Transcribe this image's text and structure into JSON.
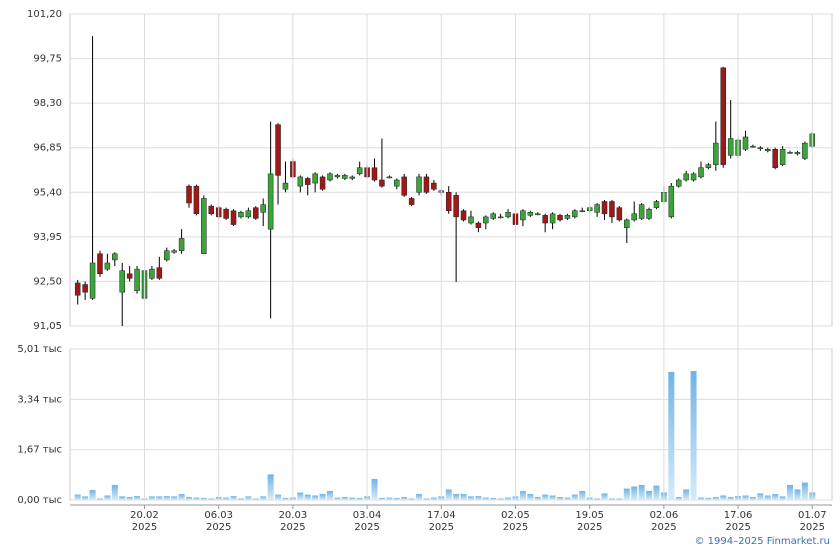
{
  "chart_data": [
    {
      "type": "candlestick",
      "color_up": "#3aa53a",
      "color_down": "#a01818",
      "ylim": [
        91.05,
        101.2
      ],
      "yticks": [
        {
          "value": 91.05,
          "label": "91,05"
        },
        {
          "value": 92.5,
          "label": "92,50"
        },
        {
          "value": 93.95,
          "label": "93,95"
        },
        {
          "value": 95.4,
          "label": "95,40"
        },
        {
          "value": 96.85,
          "label": "96,85"
        },
        {
          "value": 98.3,
          "label": "98,30"
        },
        {
          "value": 99.75,
          "label": "99,75"
        },
        {
          "value": 101.2,
          "label": "101,20"
        }
      ],
      "grid": true,
      "open": [
        92.45,
        92.4,
        91.95,
        93.4,
        92.9,
        93.2,
        92.15,
        92.75,
        92.2,
        91.95,
        92.6,
        92.95,
        93.2,
        93.45,
        93.5,
        95.6,
        95.6,
        93.4,
        94.95,
        94.9,
        94.85,
        94.8,
        94.6,
        94.6,
        94.9,
        94.75,
        94.2,
        97.6,
        95.5,
        96.4,
        95.6,
        95.85,
        95.7,
        95.9,
        95.8,
        95.9,
        95.85,
        95.85,
        96.0,
        96.2,
        96.2,
        95.8,
        95.9,
        95.6,
        95.9,
        95.2,
        95.4,
        95.9,
        95.7,
        95.4,
        95.4,
        95.3,
        94.8,
        94.4,
        94.4,
        94.4,
        94.55,
        94.6,
        94.6,
        94.7,
        94.5,
        94.65,
        94.7,
        94.65,
        94.4,
        94.65,
        94.55,
        94.6,
        94.8,
        94.8,
        94.75,
        95.1,
        95.1,
        94.9,
        94.25,
        94.5,
        94.55,
        94.55,
        94.9,
        95.1,
        94.6,
        95.6,
        95.8,
        95.8,
        95.9,
        96.2,
        96.3,
        99.45,
        96.6,
        96.6,
        96.8,
        96.9,
        96.85,
        96.75,
        96.8,
        96.3,
        96.7,
        96.65,
        96.5,
        96.9
      ],
      "high": [
        92.55,
        92.5,
        100.48,
        93.5,
        93.4,
        93.45,
        93.1,
        93.0,
        93.0,
        92.9,
        93.0,
        93.3,
        93.6,
        93.55,
        94.2,
        95.65,
        95.65,
        95.3,
        95.0,
        94.95,
        94.9,
        94.85,
        94.8,
        94.9,
        94.95,
        95.2,
        97.7,
        97.65,
        96.4,
        96.5,
        95.95,
        95.9,
        96.05,
        95.95,
        96.05,
        96.0,
        96.0,
        95.95,
        96.4,
        96.3,
        96.5,
        97.15,
        95.95,
        95.85,
        96.0,
        95.25,
        96.0,
        96.0,
        95.8,
        95.5,
        95.6,
        95.4,
        94.85,
        94.8,
        94.45,
        94.65,
        94.75,
        94.7,
        94.85,
        94.75,
        94.85,
        94.8,
        94.75,
        94.7,
        94.75,
        94.7,
        94.7,
        94.85,
        94.9,
        94.95,
        95.05,
        95.15,
        95.15,
        94.95,
        94.55,
        95.1,
        95.05,
        94.9,
        95.15,
        95.6,
        95.7,
        95.85,
        96.1,
        96.05,
        96.4,
        96.35,
        97.7,
        99.48,
        98.4,
        97.2,
        97.4,
        96.95,
        96.9,
        96.85,
        96.85,
        96.9,
        96.75,
        96.75,
        97.05,
        97.35
      ],
      "low": [
        91.75,
        91.9,
        91.9,
        92.65,
        92.85,
        93.0,
        91.05,
        92.5,
        92.1,
        91.9,
        92.55,
        92.55,
        93.15,
        93.4,
        93.4,
        94.9,
        94.65,
        93.4,
        94.65,
        94.55,
        94.5,
        94.3,
        94.55,
        94.55,
        94.5,
        94.3,
        91.3,
        95.0,
        95.4,
        95.85,
        95.4,
        95.3,
        95.4,
        95.45,
        95.75,
        95.85,
        95.8,
        95.8,
        95.95,
        95.85,
        95.75,
        95.55,
        95.85,
        95.5,
        95.25,
        94.95,
        95.3,
        95.35,
        95.45,
        95.3,
        94.7,
        92.48,
        94.45,
        94.35,
        94.1,
        94.2,
        94.5,
        94.55,
        94.55,
        94.2,
        94.3,
        94.6,
        94.65,
        94.1,
        94.2,
        94.45,
        94.5,
        94.55,
        94.75,
        94.75,
        94.6,
        94.5,
        94.4,
        94.45,
        93.75,
        94.45,
        94.5,
        94.5,
        94.85,
        95.05,
        94.55,
        95.55,
        95.75,
        95.75,
        95.85,
        96.15,
        96.1,
        96.2,
        96.5,
        96.5,
        96.75,
        96.85,
        96.75,
        96.7,
        96.15,
        96.25,
        96.65,
        96.6,
        96.45,
        96.85
      ],
      "close": [
        92.05,
        92.15,
        93.1,
        92.75,
        93.1,
        93.4,
        92.85,
        92.6,
        92.9,
        92.85,
        92.9,
        92.6,
        93.5,
        93.5,
        93.9,
        95.05,
        94.7,
        95.2,
        94.7,
        94.6,
        94.55,
        94.35,
        94.75,
        94.8,
        94.55,
        95.0,
        96.0,
        95.95,
        95.7,
        95.9,
        95.9,
        95.65,
        96.0,
        95.5,
        96.0,
        95.95,
        95.95,
        95.9,
        96.2,
        95.9,
        95.8,
        95.6,
        95.9,
        95.8,
        95.3,
        95.0,
        95.9,
        95.4,
        95.5,
        95.45,
        94.8,
        94.6,
        94.5,
        94.6,
        94.25,
        94.6,
        94.7,
        94.6,
        94.75,
        94.35,
        94.8,
        94.75,
        94.7,
        94.4,
        94.7,
        94.5,
        94.65,
        94.8,
        94.8,
        94.9,
        95.0,
        94.7,
        94.6,
        94.5,
        94.5,
        94.7,
        95.0,
        94.85,
        95.1,
        95.4,
        95.6,
        95.8,
        96.0,
        96.0,
        96.2,
        96.3,
        97.0,
        96.3,
        97.15,
        97.1,
        97.2,
        96.9,
        96.85,
        96.8,
        96.2,
        96.8,
        96.7,
        96.7,
        97.0,
        97.3
      ]
    },
    {
      "type": "bar",
      "color": "#7dbcea",
      "ylim": [
        0,
        5.01
      ],
      "yticks": [
        {
          "value": 0,
          "label": "0,00 тыс"
        },
        {
          "value": 1.67,
          "label": "1,67 тыс"
        },
        {
          "value": 3.34,
          "label": "3,34 тыс"
        },
        {
          "value": 5.01,
          "label": "5,01 тыс"
        }
      ],
      "grid": true,
      "categories": [
        null,
        null,
        null,
        null,
        null,
        null,
        null,
        null,
        null,
        "20.02\n2025",
        null,
        null,
        null,
        null,
        null,
        null,
        null,
        null,
        null,
        "06.03\n2025",
        null,
        null,
        null,
        null,
        null,
        null,
        null,
        null,
        null,
        "20.03\n2025",
        null,
        null,
        null,
        null,
        null,
        null,
        null,
        null,
        null,
        "03.04\n2025",
        null,
        null,
        null,
        null,
        null,
        null,
        null,
        null,
        null,
        "17.04\n2025",
        null,
        null,
        null,
        null,
        null,
        null,
        null,
        null,
        null,
        "02.05\n2025",
        null,
        null,
        null,
        null,
        null,
        null,
        null,
        null,
        null,
        "19.05\n2025",
        null,
        null,
        null,
        null,
        null,
        null,
        null,
        null,
        null,
        "02.06\n2025",
        null,
        null,
        null,
        null,
        null,
        null,
        null,
        null,
        null,
        "17.06\n2025",
        null,
        null,
        null,
        null,
        null,
        null,
        null,
        null,
        null,
        "01.07\n2025"
      ],
      "values": [
        0.18,
        0.12,
        0.33,
        0.05,
        0.15,
        0.5,
        0.12,
        0.1,
        0.13,
        0.05,
        0.12,
        0.12,
        0.13,
        0.12,
        0.2,
        0.1,
        0.08,
        0.07,
        0.05,
        0.1,
        0.08,
        0.13,
        0.05,
        0.12,
        0.05,
        0.12,
        0.85,
        0.18,
        0.07,
        0.08,
        0.25,
        0.18,
        0.15,
        0.2,
        0.3,
        0.08,
        0.1,
        0.08,
        0.07,
        0.12,
        0.7,
        0.07,
        0.08,
        0.07,
        0.1,
        0.05,
        0.2,
        0.05,
        0.08,
        0.12,
        0.35,
        0.2,
        0.2,
        0.12,
        0.13,
        0.08,
        0.07,
        0.05,
        0.08,
        0.12,
        0.3,
        0.2,
        0.1,
        0.18,
        0.15,
        0.1,
        0.08,
        0.18,
        0.3,
        0.08,
        0.05,
        0.22,
        0.05,
        0.05,
        0.38,
        0.45,
        0.5,
        0.3,
        0.48,
        0.25,
        4.25,
        0.1,
        0.35,
        4.28,
        0.08,
        0.07,
        0.1,
        0.15,
        0.1,
        0.13,
        0.15,
        0.1,
        0.22,
        0.15,
        0.2,
        0.12,
        0.5,
        0.35,
        0.58,
        0.25
      ]
    }
  ],
  "footer": "© 1994–2025 Finmarket.ru"
}
